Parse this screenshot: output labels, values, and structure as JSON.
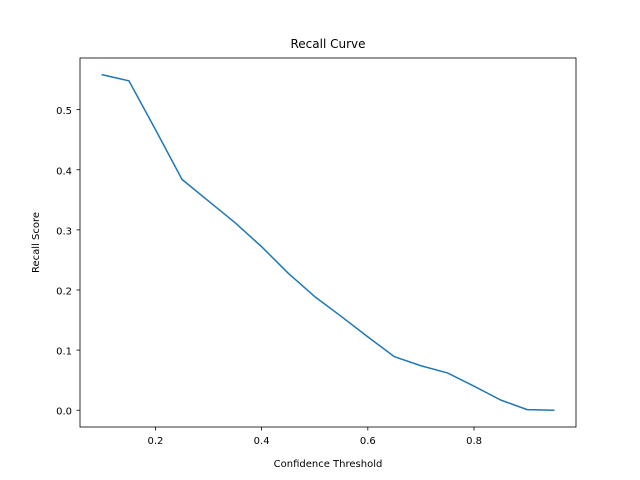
{
  "chart_data": {
    "type": "line",
    "title": "Recall Curve",
    "xlabel": "Confidence Threshold",
    "ylabel": "Recall Score",
    "xlim": [
      0.058,
      0.992
    ],
    "ylim": [
      -0.0279,
      0.5859
    ],
    "xticks": [
      0.2,
      0.4,
      0.6,
      0.8
    ],
    "xtick_labels": [
      "0.2",
      "0.4",
      "0.6",
      "0.8"
    ],
    "yticks": [
      0.0,
      0.1,
      0.2,
      0.3,
      0.4,
      0.5
    ],
    "ytick_labels": [
      "0.0",
      "0.1",
      "0.2",
      "0.3",
      "0.4",
      "0.5"
    ],
    "grid": false,
    "series": [
      {
        "color": "#1f77b4",
        "x": [
          0.1,
          0.15,
          0.2,
          0.25,
          0.3,
          0.35,
          0.4,
          0.45,
          0.5,
          0.55,
          0.6,
          0.65,
          0.7,
          0.75,
          0.8,
          0.85,
          0.9,
          0.95
        ],
        "y": [
          0.558,
          0.548,
          0.467,
          0.384,
          0.348,
          0.312,
          0.272,
          0.228,
          0.189,
          0.156,
          0.122,
          0.089,
          0.074,
          0.062,
          0.04,
          0.017,
          0.001,
          0.0
        ]
      }
    ]
  }
}
